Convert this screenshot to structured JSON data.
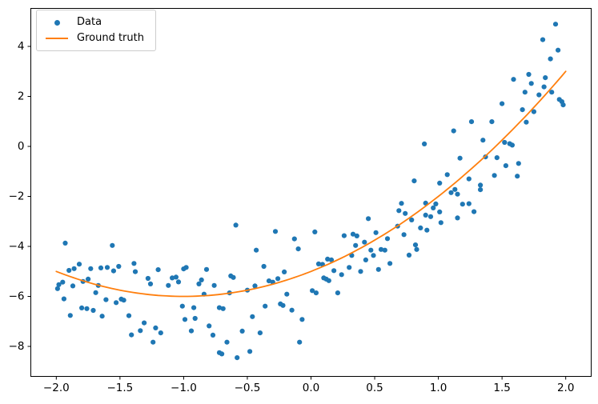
{
  "legend": {
    "entries": [
      {
        "label": "Data",
        "marker": "dot-icon",
        "color": "#1f77b4"
      },
      {
        "label": "Ground truth",
        "marker": "line-icon",
        "color": "#ff7f0e"
      }
    ],
    "position": "upper left"
  },
  "colors": {
    "scatter": "#1f77b4",
    "curve": "#ff7f0e",
    "spine": "#000000",
    "background": "#ffffff"
  },
  "chart_data": {
    "type": "scatter",
    "title": "",
    "xlabel": "",
    "ylabel": "",
    "grid": false,
    "legend_position": "upper left",
    "xlim": [
      -2.2,
      2.2
    ],
    "ylim": [
      -9.2,
      5.52
    ],
    "x_ticks": [
      -2.0,
      -1.5,
      -1.0,
      -0.5,
      0.0,
      0.5,
      1.0,
      1.5,
      2.0
    ],
    "x_tick_labels": [
      "−2.0",
      "−1.5",
      "−1.0",
      "−0.5",
      "0.0",
      "0.5",
      "1.0",
      "1.5",
      "2.0"
    ],
    "y_ticks": [
      -8,
      -6,
      -4,
      -2,
      0,
      2,
      4
    ],
    "y_tick_labels": [
      "−8",
      "−6",
      "−4",
      "−2",
      "0",
      "2",
      "4"
    ],
    "series": [
      {
        "name": "Data",
        "type": "scatter",
        "color": "#1f77b4",
        "marker_radius": 3.1,
        "points": [
          [
            -1.93,
            -3.87
          ],
          [
            -1.56,
            -3.96
          ],
          [
            -1.9,
            -4.96
          ],
          [
            -1.86,
            -4.89
          ],
          [
            -1.82,
            -4.71
          ],
          [
            -1.73,
            -4.89
          ],
          [
            -1.65,
            -4.86
          ],
          [
            -1.6,
            -4.84
          ],
          [
            -1.55,
            -4.98
          ],
          [
            -1.51,
            -4.8
          ],
          [
            -1.39,
            -4.68
          ],
          [
            -1.38,
            -5.01
          ],
          [
            -1.28,
            -5.28
          ],
          [
            -1.26,
            -5.5
          ],
          [
            -1.2,
            -4.93
          ],
          [
            -1.12,
            -5.56
          ],
          [
            -1.06,
            -5.23
          ],
          [
            -1.99,
            -5.69
          ],
          [
            -1.98,
            -5.53
          ],
          [
            -1.95,
            -5.43
          ],
          [
            -1.94,
            -6.1
          ],
          [
            -1.87,
            -5.58
          ],
          [
            -1.79,
            -5.4
          ],
          [
            -1.75,
            -5.31
          ],
          [
            -1.69,
            -5.85
          ],
          [
            -1.67,
            -5.56
          ],
          [
            -1.61,
            -6.13
          ],
          [
            -1.53,
            -6.25
          ],
          [
            -1.49,
            -6.11
          ],
          [
            -1.47,
            -6.15
          ],
          [
            -1.89,
            -6.76
          ],
          [
            -1.8,
            -6.46
          ],
          [
            -1.76,
            -6.49
          ],
          [
            -1.71,
            -6.56
          ],
          [
            -1.64,
            -6.79
          ],
          [
            -1.43,
            -6.77
          ],
          [
            -1.41,
            -7.54
          ],
          [
            -1.34,
            -7.37
          ],
          [
            -1.31,
            -7.06
          ],
          [
            -1.24,
            -7.83
          ],
          [
            -1.22,
            -7.26
          ],
          [
            -1.18,
            -7.46
          ],
          [
            -0.59,
            -3.15
          ],
          [
            -0.28,
            -3.4
          ],
          [
            -0.13,
            -3.7
          ],
          [
            -0.43,
            -4.15
          ],
          [
            -0.1,
            -4.1
          ],
          [
            -1.0,
            -4.9
          ],
          [
            -0.98,
            -4.84
          ],
          [
            -0.82,
            -4.92
          ],
          [
            -1.09,
            -5.26
          ],
          [
            -1.04,
            -5.42
          ],
          [
            -0.88,
            -5.5
          ],
          [
            -0.86,
            -5.34
          ],
          [
            -0.76,
            -5.56
          ],
          [
            -0.84,
            -5.91
          ],
          [
            -0.63,
            -5.18
          ],
          [
            -0.61,
            -5.24
          ],
          [
            -0.64,
            -5.86
          ],
          [
            -0.5,
            -5.75
          ],
          [
            -0.44,
            -5.58
          ],
          [
            -0.37,
            -4.8
          ],
          [
            -0.33,
            -5.38
          ],
          [
            -0.3,
            -5.43
          ],
          [
            -0.26,
            -5.29
          ],
          [
            -0.21,
            -5.02
          ],
          [
            -0.19,
            -5.91
          ],
          [
            -1.01,
            -6.39
          ],
          [
            -0.92,
            -6.45
          ],
          [
            -0.99,
            -6.92
          ],
          [
            -0.91,
            -6.88
          ],
          [
            -0.94,
            -7.38
          ],
          [
            -0.8,
            -7.18
          ],
          [
            -0.77,
            -7.55
          ],
          [
            -0.72,
            -6.45
          ],
          [
            -0.69,
            -6.49
          ],
          [
            -0.66,
            -7.83
          ],
          [
            -0.72,
            -8.25
          ],
          [
            -0.7,
            -8.3
          ],
          [
            -0.58,
            -8.45
          ],
          [
            -0.54,
            -7.39
          ],
          [
            -0.48,
            -8.2
          ],
          [
            -0.46,
            -6.81
          ],
          [
            -0.4,
            -7.46
          ],
          [
            -0.36,
            -6.39
          ],
          [
            -0.24,
            -6.3
          ],
          [
            -0.22,
            -6.36
          ],
          [
            -0.15,
            -6.55
          ],
          [
            -0.07,
            -6.92
          ],
          [
            -0.09,
            -7.83
          ],
          [
            0.03,
            -3.42
          ],
          [
            0.26,
            -3.57
          ],
          [
            0.33,
            -3.51
          ],
          [
            0.36,
            -3.58
          ],
          [
            0.45,
            -2.89
          ],
          [
            0.51,
            -3.45
          ],
          [
            0.6,
            -3.69
          ],
          [
            0.68,
            -3.19
          ],
          [
            0.69,
            -2.57
          ],
          [
            0.71,
            -2.28
          ],
          [
            0.74,
            -2.68
          ],
          [
            0.79,
            -2.94
          ],
          [
            0.73,
            -3.53
          ],
          [
            0.82,
            -3.94
          ],
          [
            0.83,
            -4.12
          ],
          [
            0.86,
            -3.26
          ],
          [
            0.9,
            -2.75
          ],
          [
            0.94,
            -2.81
          ],
          [
            0.91,
            -3.35
          ],
          [
            0.96,
            -2.46
          ],
          [
            0.98,
            -2.3
          ],
          [
            1.01,
            -2.62
          ],
          [
            1.02,
            -3.05
          ],
          [
            0.35,
            -3.96
          ],
          [
            0.42,
            -3.83
          ],
          [
            0.47,
            -4.15
          ],
          [
            0.49,
            -4.36
          ],
          [
            0.55,
            -4.12
          ],
          [
            0.58,
            -4.15
          ],
          [
            0.43,
            -4.54
          ],
          [
            0.32,
            -4.36
          ],
          [
            0.13,
            -4.51
          ],
          [
            0.16,
            -4.54
          ],
          [
            0.06,
            -4.7
          ],
          [
            0.09,
            -4.72
          ],
          [
            0.18,
            -4.97
          ],
          [
            0.24,
            -5.13
          ],
          [
            0.3,
            -4.84
          ],
          [
            0.39,
            -5.0
          ],
          [
            0.53,
            -4.92
          ],
          [
            0.62,
            -4.68
          ],
          [
            0.1,
            -5.26
          ],
          [
            0.12,
            -5.31
          ],
          [
            0.14,
            -5.37
          ],
          [
            0.01,
            -5.77
          ],
          [
            0.04,
            -5.86
          ],
          [
            0.21,
            -5.86
          ],
          [
            0.77,
            -4.35
          ],
          [
            0.9,
            -2.27
          ],
          [
            1.19,
            -2.31
          ],
          [
            1.24,
            -2.29
          ],
          [
            1.28,
            -2.61
          ],
          [
            1.15,
            -2.86
          ],
          [
            1.92,
            4.89
          ],
          [
            1.82,
            4.27
          ],
          [
            1.94,
            3.85
          ],
          [
            1.88,
            3.5
          ],
          [
            1.71,
            2.88
          ],
          [
            1.59,
            2.68
          ],
          [
            1.73,
            2.52
          ],
          [
            1.84,
            2.75
          ],
          [
            1.68,
            2.17
          ],
          [
            1.79,
            2.06
          ],
          [
            1.83,
            2.38
          ],
          [
            1.89,
            2.17
          ],
          [
            1.95,
            1.88
          ],
          [
            1.97,
            1.79
          ],
          [
            1.98,
            1.66
          ],
          [
            1.75,
            1.39
          ],
          [
            1.66,
            1.47
          ],
          [
            1.5,
            1.71
          ],
          [
            1.42,
            0.99
          ],
          [
            1.26,
            0.99
          ],
          [
            1.69,
            0.97
          ],
          [
            1.12,
            0.62
          ],
          [
            1.35,
            0.25
          ],
          [
            1.37,
            -0.42
          ],
          [
            1.52,
            0.16
          ],
          [
            1.56,
            0.11
          ],
          [
            1.58,
            0.05
          ],
          [
            1.46,
            -0.45
          ],
          [
            1.53,
            -0.77
          ],
          [
            1.63,
            -0.68
          ],
          [
            1.62,
            -1.19
          ],
          [
            1.44,
            -1.16
          ],
          [
            1.33,
            -1.55
          ],
          [
            1.17,
            -0.47
          ],
          [
            1.24,
            -1.3
          ],
          [
            1.33,
            -1.73
          ],
          [
            1.15,
            -1.91
          ],
          [
            0.89,
            0.1
          ],
          [
            0.81,
            -1.38
          ],
          [
            1.07,
            -1.13
          ],
          [
            1.01,
            -1.47
          ],
          [
            1.1,
            -1.85
          ],
          [
            1.13,
            -1.72
          ]
        ]
      },
      {
        "name": "Ground truth",
        "type": "line",
        "color": "#ff7f0e",
        "stroke_width": 1.8,
        "polynomial": [
          1,
          2,
          -5
        ],
        "polynomial_desc": "y = x^2 + 2x - 5",
        "x_range": [
          -2.0,
          2.0
        ]
      }
    ]
  }
}
